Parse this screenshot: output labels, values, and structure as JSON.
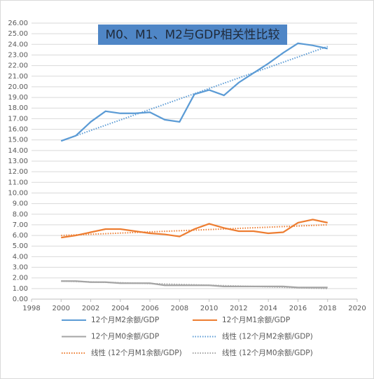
{
  "chart_data": {
    "type": "line",
    "title": "M0、M1、M2与GDP相关性比较",
    "x": [
      2000,
      2001,
      2002,
      2003,
      2004,
      2005,
      2006,
      2007,
      2008,
      2009,
      2010,
      2011,
      2012,
      2013,
      2014,
      2015,
      2016,
      2017,
      2018
    ],
    "series": [
      {
        "name": "12个月M2余额/GDP",
        "color": "#5b9bd5",
        "style": "solid",
        "values": [
          14.9,
          15.4,
          16.7,
          17.7,
          17.5,
          17.5,
          17.6,
          16.9,
          16.7,
          19.3,
          19.7,
          19.2,
          20.4,
          21.3,
          22.2,
          23.2,
          24.1,
          23.9,
          23.6
        ]
      },
      {
        "name": "12个月M1余额/GDP",
        "color": "#ed7d31",
        "style": "solid",
        "values": [
          5.8,
          6.0,
          6.3,
          6.6,
          6.6,
          6.4,
          6.2,
          6.1,
          5.9,
          6.6,
          7.1,
          6.7,
          6.4,
          6.4,
          6.2,
          6.3,
          7.2,
          7.5,
          7.2
        ]
      },
      {
        "name": "12个月M0余额/GDP",
        "color": "#a5a5a5",
        "style": "solid",
        "values": [
          1.7,
          1.7,
          1.6,
          1.6,
          1.5,
          1.5,
          1.5,
          1.3,
          1.3,
          1.3,
          1.3,
          1.2,
          1.2,
          1.2,
          1.2,
          1.2,
          1.1,
          1.1,
          1.1
        ]
      },
      {
        "name": "线性 (12个月M2余额/GDP)",
        "color": "#5b9bd5",
        "style": "dotted",
        "x": [
          2000,
          2018
        ],
        "values": [
          14.9,
          23.8
        ]
      },
      {
        "name": "线性 (12个月M1余额/GDP)",
        "color": "#ed7d31",
        "style": "dotted",
        "x": [
          2000,
          2018
        ],
        "values": [
          6.0,
          7.0
        ]
      },
      {
        "name": "线性 (12个月M0余额/GDP)",
        "color": "#a5a5a5",
        "style": "dotted",
        "x": [
          2000,
          2018
        ],
        "values": [
          1.7,
          1.0
        ]
      }
    ],
    "xlim": [
      1998,
      2020
    ],
    "xticks": [
      1998,
      2000,
      2002,
      2004,
      2006,
      2008,
      2010,
      2012,
      2014,
      2016,
      2018,
      2020
    ],
    "ylim": [
      0,
      26
    ],
    "yticks": [
      {
        "value": 0,
        "label": "0.00"
      },
      {
        "value": 1,
        "label": "1.00"
      },
      {
        "value": 2,
        "label": "2.00"
      },
      {
        "value": 3,
        "label": "3.00"
      },
      {
        "value": 4,
        "label": "4.00"
      },
      {
        "value": 5,
        "label": "5.00"
      },
      {
        "value": 6,
        "label": "6.00"
      },
      {
        "value": 7,
        "label": "7.00"
      },
      {
        "value": 8,
        "label": "8.00"
      },
      {
        "value": 9,
        "label": "9.00"
      },
      {
        "value": 10,
        "label": "10.00"
      },
      {
        "value": 11,
        "label": "11.00"
      },
      {
        "value": 12,
        "label": "12.00"
      },
      {
        "value": 13,
        "label": "13.00"
      },
      {
        "value": 14,
        "label": "14.00"
      },
      {
        "value": 15,
        "label": "15.00"
      },
      {
        "value": 16,
        "label": "16.00"
      },
      {
        "value": 17,
        "label": "17.00"
      },
      {
        "value": 18,
        "label": "18.00"
      },
      {
        "value": 19,
        "label": "19.00"
      },
      {
        "value": 20,
        "label": "20.00"
      },
      {
        "value": 21,
        "label": "21.00"
      },
      {
        "value": 22,
        "label": "22.00"
      },
      {
        "value": 23,
        "label": "23.00"
      },
      {
        "value": 24,
        "label": "24.00"
      },
      {
        "value": 25,
        "label": "25.00"
      },
      {
        "value": 26,
        "label": "26.00"
      }
    ],
    "grid": true
  }
}
